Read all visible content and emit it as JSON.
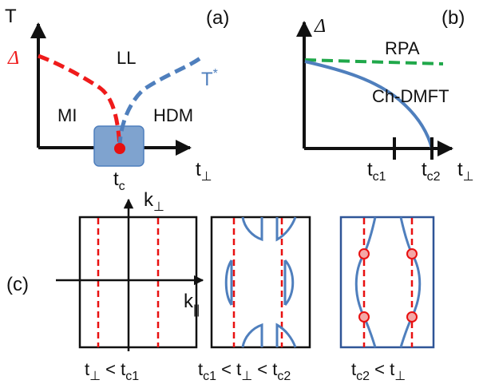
{
  "panel_a": {
    "tag": "(a)",
    "y_axis": "T",
    "x_axis": "t",
    "x_axis_sub": "⊥",
    "gap_symbol": "Δ",
    "region_ll": "LL",
    "region_mi": "MI",
    "region_hdm": "HDM",
    "crossover": "T",
    "crossover_sup": "*",
    "critical": "t",
    "critical_sub": "c",
    "colors": {
      "gap_line": "#ef1b1b",
      "crossover_line": "#4f7fbd",
      "critical_box": "#7fa3cf",
      "critical_point": "#e81010"
    }
  },
  "panel_b": {
    "tag": "(b)",
    "y_axis": "Δ",
    "x_axis": "t",
    "x_axis_sub": "⊥",
    "rpa": "RPA",
    "chdmft": "Ch-DMFT",
    "tick1": "t",
    "tick1_sub": "c1",
    "tick2": "t",
    "tick2_sub": "c2",
    "colors": {
      "rpa_line": "#20a84a",
      "chdmft_line": "#4f7fbd"
    }
  },
  "panel_c": {
    "tag": "(c)",
    "k_perp": "k",
    "k_perp_sub": "⊥",
    "k_par": "k",
    "k_par_sub": "||",
    "box1": {
      "t": "t",
      "t_sub": "⊥",
      "rel": " < t",
      "rel_sub": "c1"
    },
    "box2": {
      "a": "t",
      "a_sub": "c1",
      "rel1": " < t",
      "rel1_sub": "⊥",
      "rel2": " < t",
      "rel2_sub": "c2"
    },
    "box3": {
      "a": "t",
      "a_sub": "c2",
      "rel": " < t",
      "rel_sub": "⊥"
    },
    "colors": {
      "dashed": "#e81010",
      "surface": "#4f7fbd",
      "frame3": "#2f5597"
    }
  }
}
